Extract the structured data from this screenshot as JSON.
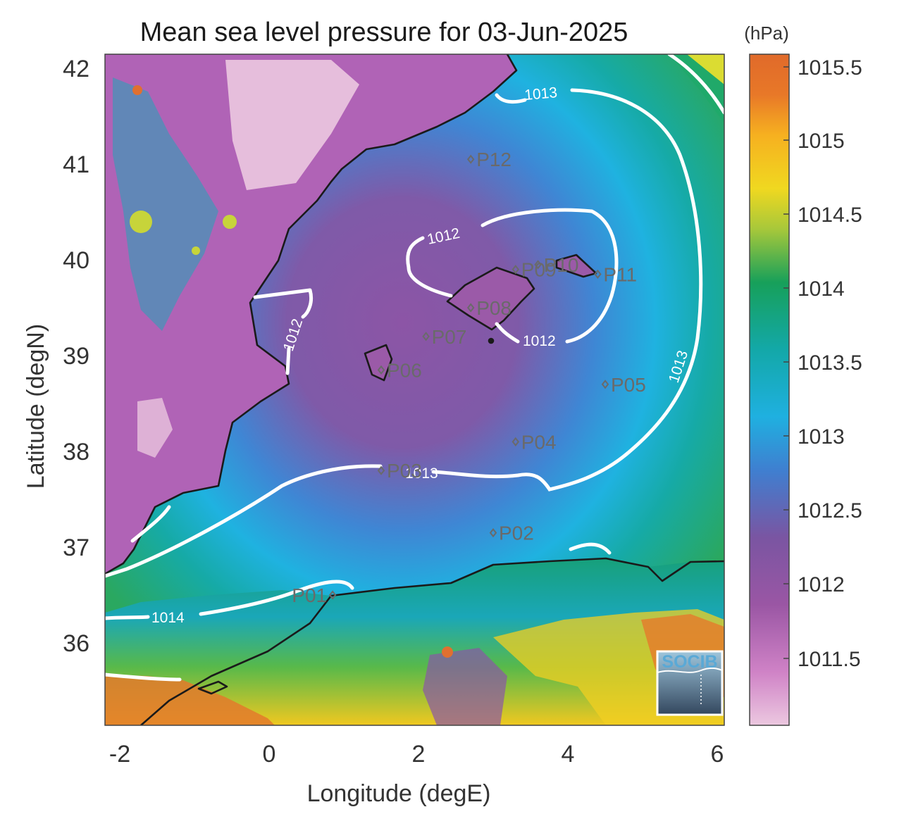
{
  "title": "Mean sea level pressure for 03-Jun-2025",
  "colorbar": {
    "unit": "(hPa)",
    "ticks": [
      "1015.5",
      "1015",
      "1014.5",
      "1014",
      "1013.5",
      "1013",
      "1012.5",
      "1012",
      "1011.5"
    ],
    "colors": [
      "#e8c4dc",
      "#c977c0",
      "#9a56a4",
      "#7f54a3",
      "#3f7fd0",
      "#1fb0e0",
      "#13a8a8",
      "#17a05a",
      "#a8c83a",
      "#f0d820",
      "#f6b020",
      "#e87828",
      "#e06a2a"
    ]
  },
  "axes": {
    "xlabel": "Longitude (degE)",
    "ylabel": "Latitude (degN)",
    "xticks": [
      "-2",
      "0",
      "2",
      "4",
      "6"
    ],
    "yticks": [
      "42",
      "41",
      "40",
      "39",
      "38",
      "37",
      "36"
    ]
  },
  "contour_labels": [
    "1013",
    "1012",
    "1012",
    "1012",
    "1013",
    "1013",
    "1014"
  ],
  "stations": [
    {
      "name": "P01",
      "lon": 0.85,
      "lat": 36.5
    },
    {
      "name": "P02",
      "lon": 3.0,
      "lat": 37.15
    },
    {
      "name": "P03",
      "lon": 1.5,
      "lat": 37.8
    },
    {
      "name": "P04",
      "lon": 3.3,
      "lat": 38.1
    },
    {
      "name": "P05",
      "lon": 4.5,
      "lat": 38.7
    },
    {
      "name": "P06",
      "lon": 1.5,
      "lat": 38.85
    },
    {
      "name": "P07",
      "lon": 2.1,
      "lat": 39.2
    },
    {
      "name": "P08",
      "lon": 2.7,
      "lat": 39.5
    },
    {
      "name": "P09",
      "lon": 3.3,
      "lat": 39.9
    },
    {
      "name": "P10",
      "lon": 3.6,
      "lat": 39.95
    },
    {
      "name": "P11",
      "lon": 4.4,
      "lat": 39.85
    },
    {
      "name": "P12",
      "lon": 2.7,
      "lat": 41.05
    }
  ],
  "logo": "SOCIB"
}
